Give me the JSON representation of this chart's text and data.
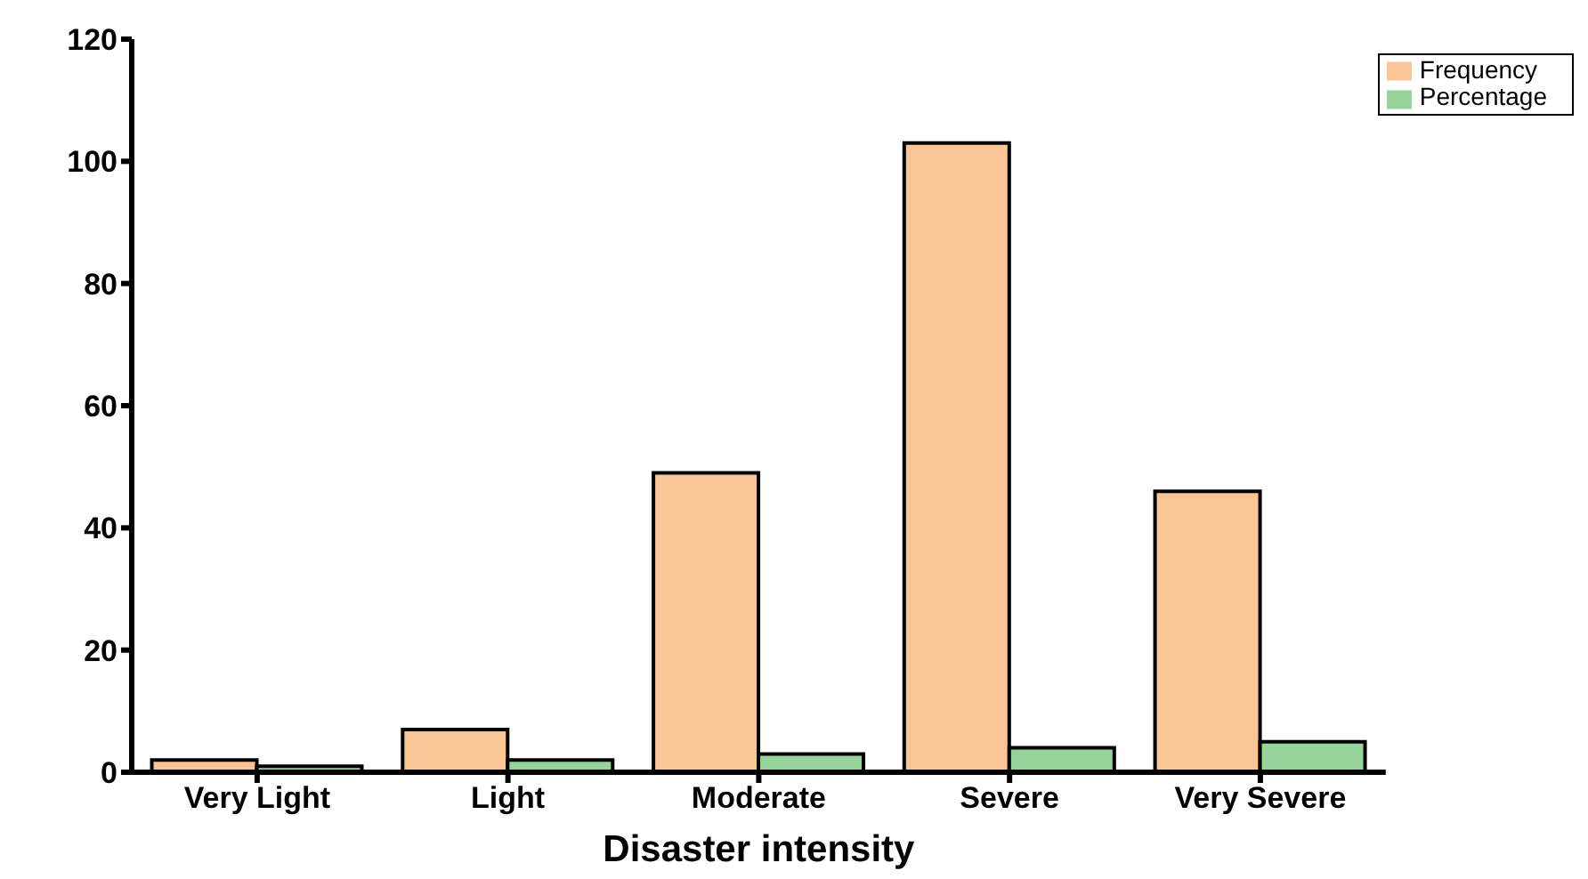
{
  "chart_data": {
    "type": "bar",
    "xlabel": "Disaster intensity",
    "categories": [
      "Very Light",
      "Light",
      "Moderate",
      "Severe",
      "Very Severe"
    ],
    "series": [
      {
        "name": "Frequency",
        "color": "#fac596",
        "values": [
          2,
          7,
          49,
          103,
          46
        ]
      },
      {
        "name": "Percentage",
        "color": "#97d49b",
        "values": [
          1,
          2,
          3,
          4,
          5
        ]
      }
    ],
    "ylim": [
      0,
      120
    ],
    "yticks": [
      0,
      20,
      40,
      60,
      80,
      100,
      120
    ],
    "grid": false,
    "legend": "top right"
  }
}
